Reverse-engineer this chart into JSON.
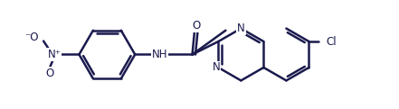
{
  "bg_color": "#ffffff",
  "bond_color": "#1a1a4e",
  "atom_color": "#1a1a4e",
  "linewidth": 1.8,
  "figsize": [
    4.41,
    1.21
  ],
  "dpi": 100,
  "font_size": 8.5,
  "font_weight": "normal",
  "xlim": [
    0.0,
    8.8
  ],
  "ylim": [
    0.3,
    2.7
  ]
}
